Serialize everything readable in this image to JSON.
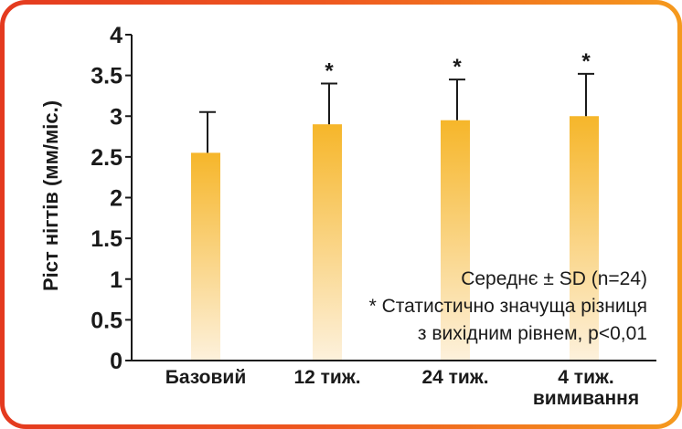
{
  "chart_data": {
    "type": "bar",
    "categories": [
      "Базовий",
      "12 тиж.",
      "24 тиж.",
      "4 тиж. вимивання"
    ],
    "category_lines": [
      [
        "Базовий"
      ],
      [
        "12 тиж."
      ],
      [
        "24 тиж."
      ],
      [
        "4 тиж.",
        "вимивання"
      ]
    ],
    "values": [
      2.55,
      2.9,
      2.95,
      3.0
    ],
    "error_upper": [
      3.05,
      3.4,
      3.45,
      3.52
    ],
    "significant": [
      false,
      true,
      true,
      true
    ],
    "significance_marker": "*",
    "ylabel": "Ріст нігтів (мм/міс.)",
    "ylim": [
      0,
      4
    ],
    "yticks": [
      0,
      0.5,
      1,
      1.5,
      2,
      2.5,
      3,
      3.5,
      4
    ],
    "ytick_labels": [
      "0",
      "0.5",
      "1",
      "1.5",
      "2",
      "2.5",
      "3",
      "3.5",
      "4"
    ],
    "annotations": [
      "Середнє ± SD (n=24)",
      "* Статистично значуща різниця",
      "з вихідним рівнем, p<0,01"
    ],
    "bar_color_top": "#f6b62a",
    "bar_color_bottom": "#fdf1dc"
  }
}
